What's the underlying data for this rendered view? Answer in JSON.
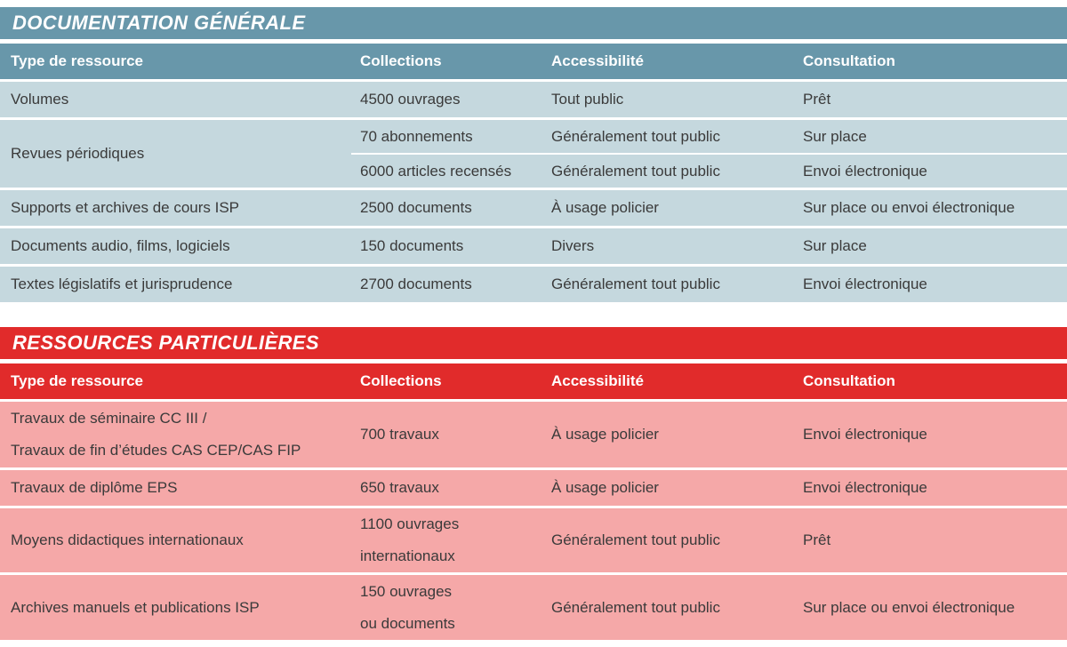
{
  "colors": {
    "blue_header": "#6897aa",
    "blue_row": "#c5d8de",
    "red_header": "#e12b2b",
    "red_row": "#f5a8a8",
    "text": "#3a3a3a",
    "background": "#ffffff"
  },
  "doc_table": {
    "title": "DOCUMENTATION GÉNÉRALE",
    "headers": {
      "type": "Type de ressource",
      "collections": "Collections",
      "access": "Accessibilité",
      "consult": "Consultation"
    },
    "rows": {
      "volumes": {
        "type": "Volumes",
        "collections": "4500 ouvrages",
        "access": "Tout public",
        "consult": "Prêt"
      },
      "revues": {
        "type": "Revues périodiques",
        "sub_rows": [
          {
            "collections": "70 abonnements",
            "access": "Généralement tout public",
            "consult": "Sur place"
          },
          {
            "collections": "6000 articles recensés",
            "access": "Généralement tout public",
            "consult": "Envoi électronique"
          }
        ]
      },
      "supports": {
        "type": "Supports et archives de cours ISP",
        "collections": "2500 documents",
        "access": "À usage policier",
        "consult": "Sur place ou envoi électronique"
      },
      "audio": {
        "type": "Documents audio, films, logiciels",
        "collections": "150 documents",
        "access": "Divers",
        "consult": "Sur place"
      },
      "textes": {
        "type": "Textes législatifs et jurisprudence",
        "collections": "2700 documents",
        "access": "Généralement tout public",
        "consult": "Envoi électronique"
      }
    }
  },
  "res_table": {
    "title": "RESSOURCES PARTICULIÈRES",
    "headers": {
      "type": "Type de ressource",
      "collections": "Collections",
      "access": "Accessibilité",
      "consult": "Consultation"
    },
    "rows": {
      "seminaire": {
        "type_lines": [
          "Travaux de séminaire CC III /",
          "Travaux de fin d’études CAS CEP/CAS FIP"
        ],
        "collections": "700 travaux",
        "access": "À usage policier",
        "consult": "Envoi électronique"
      },
      "diplome": {
        "type": "Travaux de diplôme EPS",
        "collections": "650 travaux",
        "access": "À usage policier",
        "consult": "Envoi électronique"
      },
      "moyens": {
        "type": "Moyens didactiques internationaux",
        "collections_lines": [
          "1100 ouvrages",
          "internationaux"
        ],
        "access": "Généralement tout public",
        "consult": "Prêt"
      },
      "archives": {
        "type": "Archives manuels et publications ISP",
        "collections_lines": [
          "150 ouvrages",
          "ou documents"
        ],
        "access": "Généralement tout public",
        "consult": "Sur place ou envoi électronique"
      }
    }
  }
}
